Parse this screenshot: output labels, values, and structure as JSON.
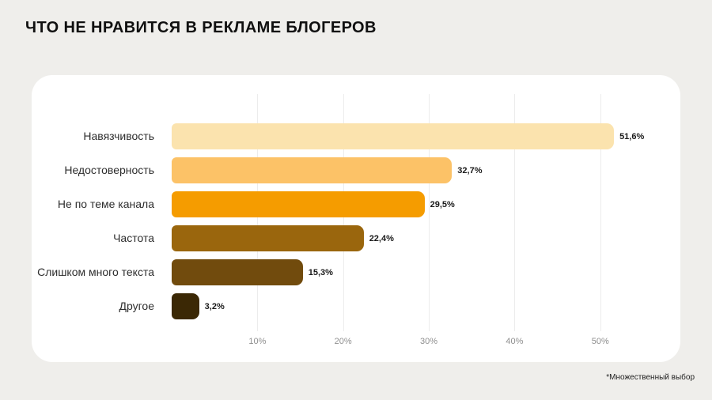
{
  "header": {
    "title": "ЧТО НЕ НРАВИТСЯ В РЕКЛАМЕ БЛОГЕРОВ"
  },
  "footnote": "*Множественный выбор",
  "chart_data": {
    "type": "bar",
    "orientation": "horizontal",
    "title": "ЧТО НЕ НРАВИТСЯ В РЕКЛАМЕ БЛОГЕРОВ",
    "categories": [
      "Навязчивость",
      "Недостоверность",
      "Не по теме канала",
      "Частота",
      "Слишком много текста",
      "Другое"
    ],
    "values": [
      51.6,
      32.7,
      29.5,
      22.4,
      15.3,
      3.2
    ],
    "value_labels": [
      "51,6%",
      "32,7%",
      "29,5%",
      "22,4%",
      "15,3%",
      "3,2%"
    ],
    "colors": [
      "#FBE3AE",
      "#FCC267",
      "#F59C00",
      "#9A660D",
      "#714B0D",
      "#3B2805"
    ],
    "xmax": 57.5,
    "ticks": [
      {
        "value": 10,
        "label": "10%"
      },
      {
        "value": 20,
        "label": "20%"
      },
      {
        "value": 30,
        "label": "30%"
      },
      {
        "value": 40,
        "label": "40%"
      },
      {
        "value": 50,
        "label": "50%"
      }
    ],
    "grid": true,
    "legend": false,
    "xlabel": "",
    "ylabel": ""
  }
}
